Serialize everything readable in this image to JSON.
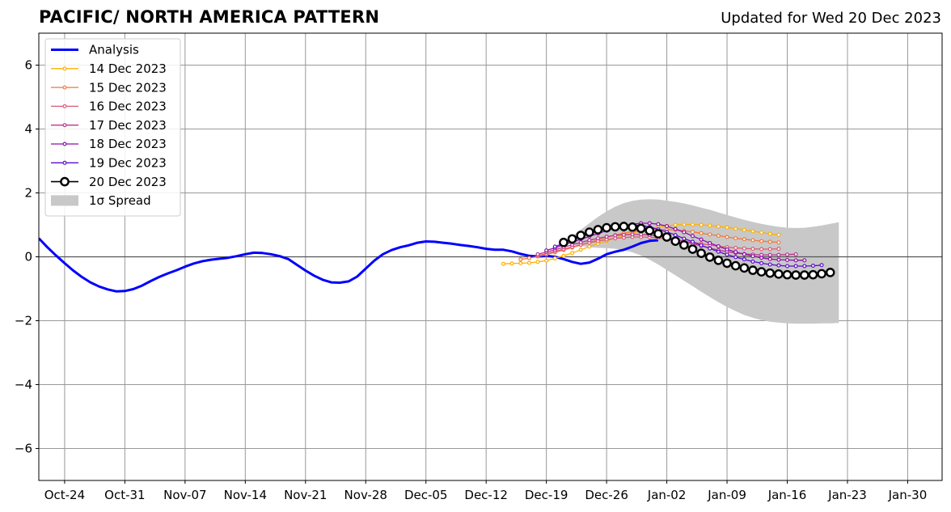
{
  "title": "PACIFIC/ NORTH AMERICA PATTERN",
  "updated": "Updated for Wed 20 Dec 2023",
  "chart_data": {
    "type": "line",
    "ylim": [
      -7,
      7
    ],
    "yticks": [
      6,
      4,
      2,
      0,
      -2,
      -4,
      -6
    ],
    "ytick_labels": [
      "6",
      "4",
      "2",
      "0",
      "−2",
      "−4",
      "−6"
    ],
    "xlim": [
      "2023-10-21",
      "2024-02-03"
    ],
    "xticks": [
      "2023-10-24",
      "2023-10-31",
      "2023-11-07",
      "2023-11-14",
      "2023-11-21",
      "2023-11-28",
      "2023-12-05",
      "2023-12-12",
      "2023-12-19",
      "2023-12-26",
      "2024-01-02",
      "2024-01-09",
      "2024-01-16",
      "2024-01-23",
      "2024-01-30"
    ],
    "xtick_labels": [
      "Oct-24",
      "Oct-31",
      "Nov-07",
      "Nov-14",
      "Nov-21",
      "Nov-28",
      "Dec-05",
      "Dec-12",
      "Dec-19",
      "Dec-26",
      "Jan-02",
      "Jan-09",
      "Jan-16",
      "Jan-23",
      "Jan-30"
    ],
    "grid": true,
    "legend_position": "top-left",
    "legend": [
      "Analysis",
      "14 Dec 2023",
      "15 Dec 2023",
      "16 Dec 2023",
      "17 Dec 2023",
      "18 Dec 2023",
      "19 Dec 2023",
      "20 Dec 2023",
      "1σ Spread"
    ],
    "analysis": {
      "name": "Analysis",
      "color": "#0000ff",
      "start": "2023-10-21",
      "values": [
        0.58,
        0.3,
        0.04,
        -0.2,
        -0.43,
        -0.63,
        -0.8,
        -0.93,
        -1.02,
        -1.08,
        -1.07,
        -1.01,
        -0.9,
        -0.76,
        -0.63,
        -0.52,
        -0.42,
        -0.31,
        -0.21,
        -0.14,
        -0.09,
        -0.06,
        -0.03,
        0.02,
        0.08,
        0.13,
        0.12,
        0.08,
        0.02,
        -0.07,
        -0.25,
        -0.43,
        -0.59,
        -0.72,
        -0.8,
        -0.81,
        -0.77,
        -0.62,
        -0.37,
        -0.12,
        0.08,
        0.21,
        0.3,
        0.36,
        0.44,
        0.48,
        0.47,
        0.44,
        0.41,
        0.37,
        0.34,
        0.3,
        0.25,
        0.22,
        0.22,
        0.17,
        0.09,
        0.03,
        0.01,
        0.03,
        0.0,
        -0.07,
        -0.16,
        -0.22,
        -0.18,
        -0.06,
        0.08,
        0.16,
        0.22,
        0.32,
        0.43,
        0.5,
        0.52
      ]
    },
    "forecasts": [
      {
        "name": "14 Dec 2023",
        "color": "#ffb000",
        "start": "2023-12-14",
        "values": [
          -0.22,
          -0.21,
          -0.2,
          -0.19,
          -0.16,
          -0.12,
          -0.05,
          0.03,
          0.12,
          0.22,
          0.32,
          0.41,
          0.5,
          0.58,
          0.66,
          0.74,
          0.81,
          0.88,
          0.93,
          0.97,
          1.0,
          1.01,
          1.01,
          1.0,
          0.98,
          0.95,
          0.92,
          0.88,
          0.84,
          0.8,
          0.76,
          0.72,
          0.69
        ]
      },
      {
        "name": "15 Dec 2023",
        "color": "#f07a3a",
        "start": "2023-12-16",
        "values": [
          -0.08,
          -0.04,
          0.01,
          0.07,
          0.14,
          0.21,
          0.29,
          0.37,
          0.45,
          0.53,
          0.61,
          0.68,
          0.74,
          0.79,
          0.83,
          0.85,
          0.86,
          0.85,
          0.84,
          0.81,
          0.78,
          0.74,
          0.7,
          0.66,
          0.62,
          0.58,
          0.55,
          0.52,
          0.49,
          0.47,
          0.45
        ]
      },
      {
        "name": "16 Dec 2023",
        "color": "#dc5a76",
        "start": "2023-12-18",
        "values": [
          0.04,
          0.1,
          0.17,
          0.24,
          0.31,
          0.38,
          0.44,
          0.49,
          0.54,
          0.58,
          0.6,
          0.62,
          0.62,
          0.61,
          0.59,
          0.56,
          0.53,
          0.49,
          0.45,
          0.41,
          0.37,
          0.33,
          0.3,
          0.28,
          0.26,
          0.25,
          0.24,
          0.24,
          0.25
        ]
      },
      {
        "name": "17 Dec 2023",
        "color": "#b8358f",
        "start": "2023-12-18",
        "values": [
          0.08,
          0.15,
          0.22,
          0.3,
          0.38,
          0.45,
          0.52,
          0.58,
          0.63,
          0.67,
          0.69,
          0.7,
          0.7,
          0.68,
          0.65,
          0.6,
          0.55,
          0.48,
          0.41,
          0.34,
          0.27,
          0.21,
          0.16,
          0.12,
          0.09,
          0.07,
          0.06,
          0.06,
          0.06,
          0.07,
          0.08
        ]
      },
      {
        "name": "18 Dec 2023",
        "color": "#8c10a8",
        "start": "2023-12-19",
        "values": [
          0.2,
          0.28,
          0.37,
          0.46,
          0.55,
          0.64,
          0.73,
          0.82,
          0.9,
          0.97,
          1.02,
          1.05,
          1.05,
          1.02,
          0.96,
          0.87,
          0.77,
          0.65,
          0.54,
          0.43,
          0.33,
          0.23,
          0.15,
          0.08,
          0.02,
          -0.03,
          -0.07,
          -0.09,
          -0.1,
          -0.11,
          -0.11
        ]
      },
      {
        "name": "19 Dec 2023",
        "color": "#5b0ccf",
        "start": "2023-12-20",
        "values": [
          0.32,
          0.42,
          0.52,
          0.62,
          0.72,
          0.81,
          0.89,
          0.95,
          0.99,
          1.0,
          0.98,
          0.93,
          0.86,
          0.78,
          0.68,
          0.57,
          0.47,
          0.36,
          0.26,
          0.16,
          0.07,
          -0.01,
          -0.08,
          -0.15,
          -0.2,
          -0.24,
          -0.27,
          -0.29,
          -0.29,
          -0.29,
          -0.28,
          -0.26
        ]
      },
      {
        "name": "20 Dec 2023",
        "color": "#000000",
        "start": "2023-12-21",
        "values": [
          0.45,
          0.56,
          0.67,
          0.77,
          0.85,
          0.91,
          0.94,
          0.95,
          0.93,
          0.89,
          0.82,
          0.72,
          0.62,
          0.49,
          0.37,
          0.24,
          0.11,
          -0.01,
          -0.11,
          -0.2,
          -0.28,
          -0.35,
          -0.42,
          -0.47,
          -0.51,
          -0.54,
          -0.56,
          -0.57,
          -0.57,
          -0.56,
          -0.53,
          -0.49
        ]
      }
    ],
    "spread": {
      "name": "1σ Spread",
      "color": "#c8c8c8",
      "start": "2023-12-21",
      "upper": [
        0.45,
        0.64,
        0.85,
        1.05,
        1.25,
        1.42,
        1.57,
        1.68,
        1.75,
        1.79,
        1.8,
        1.79,
        1.76,
        1.72,
        1.67,
        1.61,
        1.54,
        1.47,
        1.39,
        1.31,
        1.23,
        1.16,
        1.09,
        1.03,
        0.98,
        0.94,
        0.91,
        0.9,
        0.91,
        0.94,
        0.98,
        1.03,
        1.08
      ],
      "lower": [
        0.45,
        0.39,
        0.34,
        0.3,
        0.28,
        0.27,
        0.25,
        0.21,
        0.14,
        0.04,
        -0.09,
        -0.24,
        -0.41,
        -0.58,
        -0.75,
        -0.92,
        -1.09,
        -1.26,
        -1.42,
        -1.57,
        -1.7,
        -1.82,
        -1.91,
        -1.98,
        -2.03,
        -2.06,
        -2.08,
        -2.09,
        -2.09,
        -2.09,
        -2.08,
        -2.08,
        -2.07
      ]
    }
  }
}
